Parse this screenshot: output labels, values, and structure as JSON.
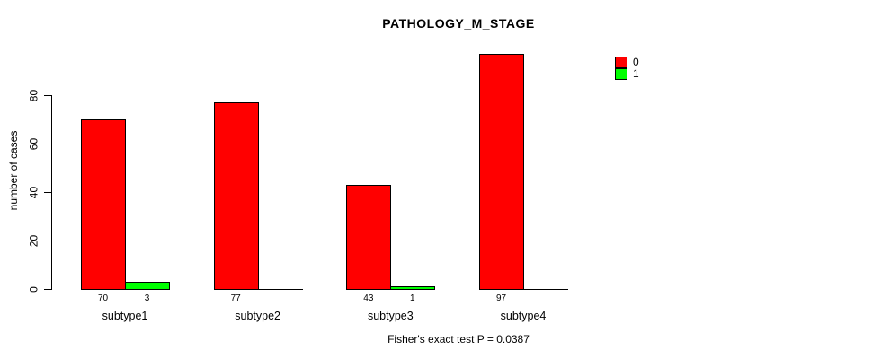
{
  "title": "PATHOLOGY_M_STAGE",
  "ylabel": "number of cases",
  "footer": "Fisher's exact test P = 0.0387",
  "legend": {
    "items": [
      {
        "label": "0",
        "color": "#ff0000"
      },
      {
        "label": "1",
        "color": "#00ff00"
      }
    ]
  },
  "chart_data": {
    "type": "bar",
    "title": "PATHOLOGY_M_STAGE",
    "xlabel": "",
    "ylabel": "number of cases",
    "categories": [
      "subtype1",
      "subtype2",
      "subtype3",
      "subtype4"
    ],
    "series": [
      {
        "name": "0",
        "color": "#ff0000",
        "values": [
          70,
          77,
          43,
          97
        ]
      },
      {
        "name": "1",
        "color": "#00ff00",
        "values": [
          3,
          0,
          1,
          0
        ]
      }
    ],
    "bar_value_labels": [
      [
        "70",
        "3"
      ],
      [
        "77",
        ""
      ],
      [
        "43",
        "1"
      ],
      [
        "97",
        ""
      ]
    ],
    "yticks": [
      0,
      20,
      40,
      60,
      80
    ],
    "ylim": [
      0,
      100
    ],
    "grid": false,
    "legend_position": "top-right",
    "annotation": "Fisher's exact test P = 0.0387"
  }
}
